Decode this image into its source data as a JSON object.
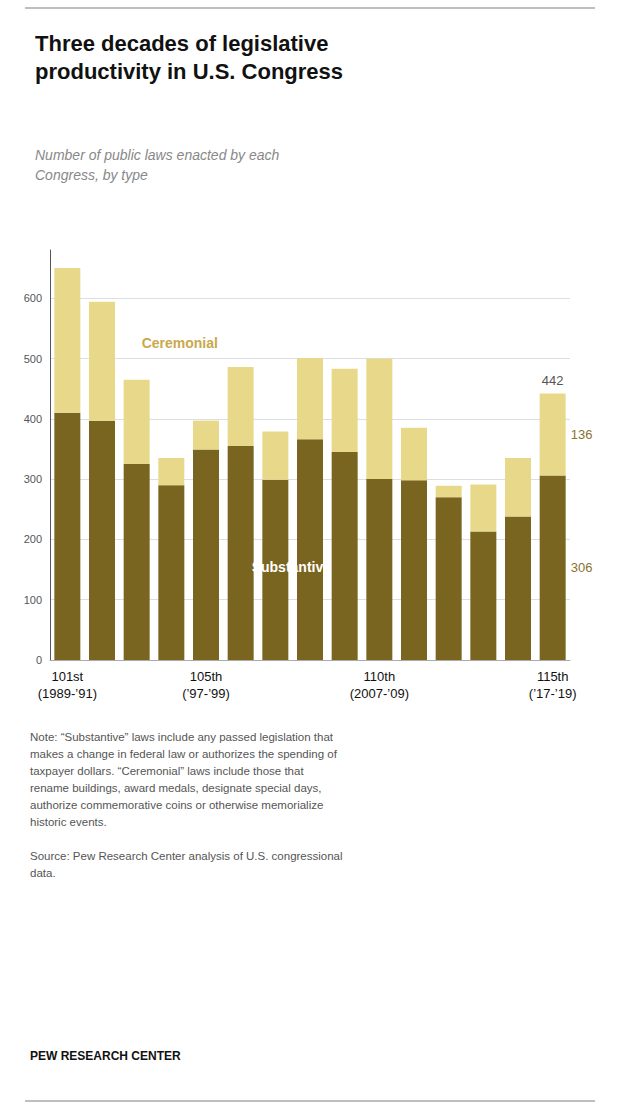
{
  "chart_data": {
    "type": "bar",
    "stacked": true,
    "title": "Three decades of legislative\nproductivity in U.S. Congress",
    "subtitle": "Number of public laws enacted by each\nCongress, by type",
    "categories": [
      "101st\n(1989-’91)",
      null,
      null,
      null,
      "105th\n(’97-’99)",
      null,
      null,
      null,
      null,
      "110th\n(2007-’09)",
      null,
      null,
      null,
      null,
      "115th\n(’17-’19)"
    ],
    "series": [
      {
        "name": "Substantive",
        "color": "#7a6520",
        "values": [
          410,
          397,
          325,
          290,
          349,
          355,
          299,
          366,
          345,
          300,
          298,
          270,
          213,
          238,
          306
        ],
        "value_labels": [
          null,
          null,
          null,
          null,
          null,
          null,
          null,
          null,
          null,
          null,
          null,
          null,
          null,
          null,
          "306"
        ]
      },
      {
        "name": "Ceremonial",
        "color": "#e8d98a",
        "values": [
          240,
          197,
          140,
          45,
          48,
          131,
          80,
          135,
          138,
          200,
          87,
          19,
          78,
          97,
          136
        ],
        "value_labels": [
          null,
          null,
          null,
          null,
          null,
          null,
          null,
          null,
          null,
          null,
          null,
          null,
          null,
          null,
          "136"
        ]
      }
    ],
    "ylim": [
      0,
      680
    ],
    "yticks": [
      0,
      100,
      200,
      300,
      400,
      500,
      600
    ],
    "grid": true,
    "annotations": [
      "442"
    ],
    "note": "Note: “Substantive” laws include any passed legislation that\nmakes a change in federal law or authorizes the spending of\ntaxpayer dollars. “Ceremonial” laws include those that\nrename buildings, award medals, designate special days,\nauthorize commemorative coins or otherwise memorialize\nhistoric events.",
    "source": "Source: Pew Research Center analysis of U.S. congressional\ndata.",
    "footer": "PEW RESEARCH CENTER"
  }
}
